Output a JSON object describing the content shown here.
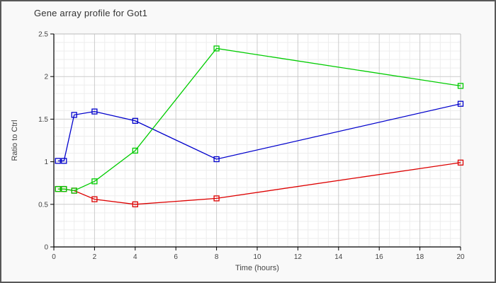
{
  "chart": {
    "title": "Gene array profile for Got1"
  },
  "chart_data": {
    "type": "line",
    "title": "Gene array profile for Got1",
    "xlabel": "Time (hours)",
    "ylabel": "Ratio to Ctrl",
    "xlim": [
      0,
      20
    ],
    "ylim": [
      0,
      2.5
    ],
    "x_ticks": [
      0,
      2,
      4,
      6,
      8,
      10,
      12,
      14,
      16,
      18,
      20
    ],
    "y_ticks": [
      0,
      0.5,
      1,
      1.5,
      2,
      2.5
    ],
    "x_minor_step": 0.5,
    "y_minor_step": 0.1,
    "grid": "major+minor",
    "legend": "none",
    "marker": "open-square",
    "x": [
      0.2,
      0.5,
      1,
      2,
      4,
      8,
      20
    ],
    "series": [
      {
        "name": "red-series",
        "color": "#dd0000",
        "values": [
          0.68,
          0.68,
          0.66,
          0.56,
          0.5,
          0.57,
          0.99
        ]
      },
      {
        "name": "blue-series",
        "color": "#0000cc",
        "values": [
          1.01,
          1.01,
          1.55,
          1.59,
          1.48,
          1.03,
          1.68
        ]
      },
      {
        "name": "green-series",
        "color": "#00cc00",
        "values": [
          0.68,
          0.68,
          0.66,
          0.77,
          1.13,
          2.33,
          1.89
        ]
      }
    ],
    "colors": {
      "plot_bg": "#ffffff",
      "outer_bg": "#f9f9f9",
      "major_grid": "#cccccc",
      "minor_grid": "#ededed",
      "axis_line": "#000000",
      "frame_line": "#bbbbbb",
      "tick_label": "#444444",
      "axis_title": "#444444"
    }
  }
}
